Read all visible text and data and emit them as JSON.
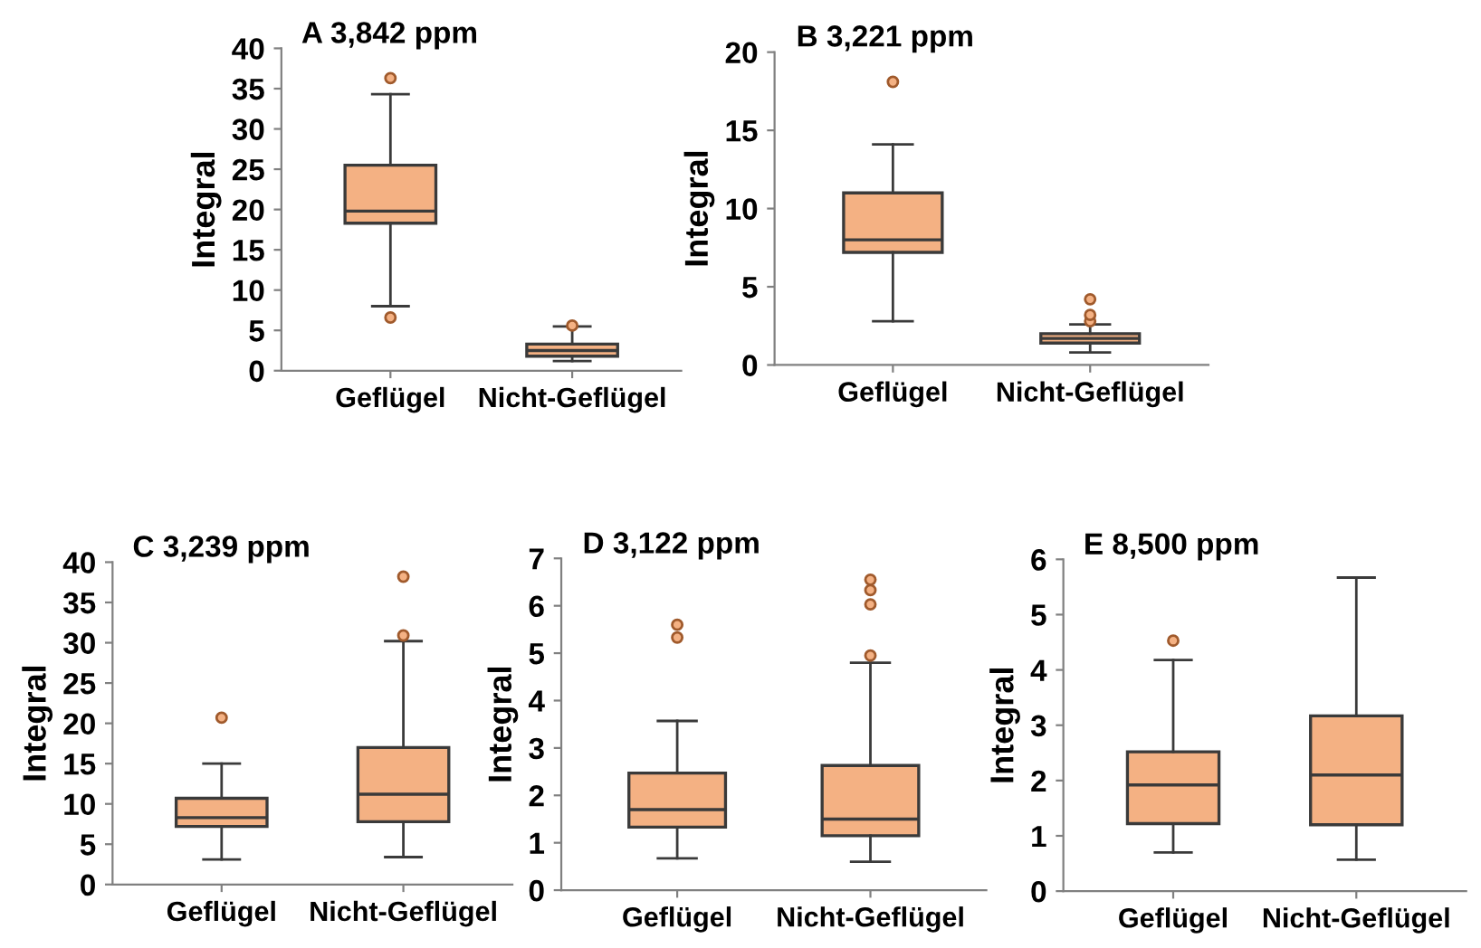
{
  "chart_data": [
    {
      "type": "box",
      "title": "A 3,842 ppm",
      "ylabel": "Integral",
      "categories": [
        "Geflügel",
        "Nicht-Geflügel"
      ],
      "ylim": [
        0,
        40
      ],
      "yticks": [
        0,
        5,
        10,
        15,
        20,
        25,
        30,
        35,
        40
      ],
      "color": "#f4b183",
      "grid": false,
      "legend": false,
      "boxes": [
        {
          "low": 8,
          "q1": 18.3,
          "median": 19.8,
          "q3": 25.5,
          "high": 34.3,
          "outliers": [
            36.3,
            6.6
          ]
        },
        {
          "low": 1.2,
          "q1": 1.8,
          "median": 2.5,
          "q3": 3.3,
          "high": 5.5,
          "outliers": [
            5.6
          ]
        }
      ]
    },
    {
      "type": "box",
      "title": "B 3,221 ppm",
      "ylabel": "Integral",
      "categories": [
        "Geflügel",
        "Nicht-Geflügel"
      ],
      "ylim": [
        0,
        20
      ],
      "yticks": [
        0,
        5,
        10,
        15,
        20
      ],
      "color": "#f4b183",
      "grid": false,
      "legend": false,
      "boxes": [
        {
          "low": 2.8,
          "q1": 7.2,
          "median": 8.0,
          "q3": 11.0,
          "high": 14.1,
          "outliers": [
            18.1
          ]
        },
        {
          "low": 0.8,
          "q1": 1.4,
          "median": 1.7,
          "q3": 2.0,
          "high": 2.6,
          "outliers": [
            2.8,
            3.2,
            4.2
          ]
        }
      ]
    },
    {
      "type": "box",
      "title": "C 3,239 ppm",
      "ylabel": "Integral",
      "categories": [
        "Geflügel",
        "Nicht-Geflügel"
      ],
      "ylim": [
        0,
        40
      ],
      "yticks": [
        0,
        5,
        10,
        15,
        20,
        25,
        30,
        35,
        40
      ],
      "color": "#f4b183",
      "grid": false,
      "legend": false,
      "boxes": [
        {
          "low": 3.1,
          "q1": 7.2,
          "median": 8.3,
          "q3": 10.7,
          "high": 15.0,
          "outliers": [
            20.7
          ]
        },
        {
          "low": 3.4,
          "q1": 7.8,
          "median": 11.2,
          "q3": 17.0,
          "high": 30.2,
          "outliers": [
            30.9,
            38.2
          ]
        }
      ]
    },
    {
      "type": "box",
      "title": "D 3,122 ppm",
      "ylabel": "Integral",
      "categories": [
        "Geflügel",
        "Nicht-Geflügel"
      ],
      "ylim": [
        0,
        7
      ],
      "yticks": [
        0,
        1,
        2,
        3,
        4,
        5,
        6,
        7
      ],
      "color": "#f4b183",
      "grid": false,
      "legend": false,
      "boxes": [
        {
          "low": 0.67,
          "q1": 1.33,
          "median": 1.7,
          "q3": 2.47,
          "high": 3.57,
          "outliers": [
            5.33,
            5.6
          ]
        },
        {
          "low": 0.6,
          "q1": 1.15,
          "median": 1.5,
          "q3": 2.63,
          "high": 4.8,
          "outliers": [
            4.95,
            6.03,
            6.33,
            6.55
          ]
        }
      ]
    },
    {
      "type": "box",
      "title": "E 8,500 ppm",
      "ylabel": "Integral",
      "categories": [
        "Geflügel",
        "Nicht-Geflügel"
      ],
      "ylim": [
        0,
        6
      ],
      "yticks": [
        0,
        1,
        2,
        3,
        4,
        5,
        6
      ],
      "color": "#f4b183",
      "grid": false,
      "legend": false,
      "boxes": [
        {
          "low": 0.7,
          "q1": 1.22,
          "median": 1.92,
          "q3": 2.52,
          "high": 4.18,
          "outliers": [
            4.53
          ]
        },
        {
          "low": 0.57,
          "q1": 1.2,
          "median": 2.1,
          "q3": 3.17,
          "high": 5.67
        }
      ]
    }
  ]
}
